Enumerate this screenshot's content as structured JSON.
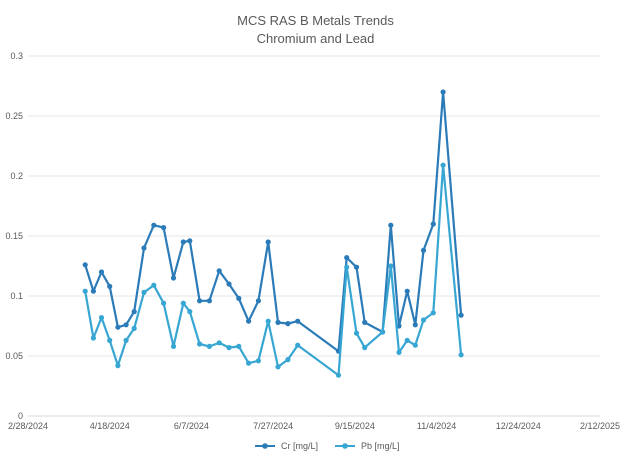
{
  "chart_data": {
    "type": "line",
    "title": "MCS RAS B Metals Trends",
    "subtitle": "Chromium and Lead",
    "xlabel": "",
    "ylabel": "",
    "ylim": [
      0,
      0.3
    ],
    "xlim": [
      "2024-02-28",
      "2025-02-12"
    ],
    "x_ticks": [
      "2/28/2024",
      "4/18/2024",
      "6/7/2024",
      "7/27/2024",
      "9/15/2024",
      "11/4/2024",
      "12/24/2024",
      "2/12/2025"
    ],
    "y_ticks": [
      "0",
      "0.05",
      "0.1",
      "0.15",
      "0.2",
      "0.25",
      "0.3"
    ],
    "grid": true,
    "legend_position": "bottom",
    "series": [
      {
        "name": "Cr [mg/L]",
        "color": "#2b7bb9",
        "points": [
          [
            "2024-04-03",
            0.126
          ],
          [
            "2024-04-08",
            0.104
          ],
          [
            "2024-04-13",
            0.12
          ],
          [
            "2024-04-18",
            0.108
          ],
          [
            "2024-04-23",
            0.074
          ],
          [
            "2024-04-28",
            0.076
          ],
          [
            "2024-05-03",
            0.087
          ],
          [
            "2024-05-09",
            0.14
          ],
          [
            "2024-05-15",
            0.159
          ],
          [
            "2024-05-21",
            0.157
          ],
          [
            "2024-05-27",
            0.115
          ],
          [
            "2024-06-02",
            0.145
          ],
          [
            "2024-06-06",
            0.146
          ],
          [
            "2024-06-12",
            0.096
          ],
          [
            "2024-06-18",
            0.096
          ],
          [
            "2024-06-24",
            0.121
          ],
          [
            "2024-06-30",
            0.11
          ],
          [
            "2024-07-06",
            0.098
          ],
          [
            "2024-07-12",
            0.079
          ],
          [
            "2024-07-18",
            0.096
          ],
          [
            "2024-07-24",
            0.145
          ],
          [
            "2024-07-30",
            0.078
          ],
          [
            "2024-08-05",
            0.077
          ],
          [
            "2024-08-11",
            0.079
          ],
          [
            "2024-09-05",
            0.054
          ],
          [
            "2024-09-10",
            0.132
          ],
          [
            "2024-09-16",
            0.124
          ],
          [
            "2024-09-21",
            0.078
          ],
          [
            "2024-10-02",
            0.07
          ],
          [
            "2024-10-07",
            0.159
          ],
          [
            "2024-10-12",
            0.075
          ],
          [
            "2024-10-17",
            0.104
          ],
          [
            "2024-10-22",
            0.076
          ],
          [
            "2024-10-27",
            0.138
          ],
          [
            "2024-11-02",
            0.16
          ],
          [
            "2024-11-08",
            0.27
          ],
          [
            "2024-11-19",
            0.084
          ]
        ]
      },
      {
        "name": "Pb [mg/L]",
        "color": "#37a6d2",
        "points": [
          [
            "2024-04-03",
            0.104
          ],
          [
            "2024-04-08",
            0.065
          ],
          [
            "2024-04-13",
            0.082
          ],
          [
            "2024-04-18",
            0.063
          ],
          [
            "2024-04-23",
            0.042
          ],
          [
            "2024-04-28",
            0.063
          ],
          [
            "2024-05-03",
            0.073
          ],
          [
            "2024-05-09",
            0.103
          ],
          [
            "2024-05-15",
            0.109
          ],
          [
            "2024-05-21",
            0.094
          ],
          [
            "2024-05-27",
            0.058
          ],
          [
            "2024-06-02",
            0.094
          ],
          [
            "2024-06-06",
            0.087
          ],
          [
            "2024-06-12",
            0.06
          ],
          [
            "2024-06-18",
            0.058
          ],
          [
            "2024-06-24",
            0.061
          ],
          [
            "2024-06-30",
            0.057
          ],
          [
            "2024-07-06",
            0.058
          ],
          [
            "2024-07-12",
            0.044
          ],
          [
            "2024-07-18",
            0.046
          ],
          [
            "2024-07-24",
            0.079
          ],
          [
            "2024-07-30",
            0.041
          ],
          [
            "2024-08-05",
            0.047
          ],
          [
            "2024-08-11",
            0.059
          ],
          [
            "2024-09-05",
            0.034
          ],
          [
            "2024-09-10",
            0.124
          ],
          [
            "2024-09-16",
            0.069
          ],
          [
            "2024-09-21",
            0.057
          ],
          [
            "2024-10-02",
            0.07
          ],
          [
            "2024-10-07",
            0.125
          ],
          [
            "2024-10-12",
            0.053
          ],
          [
            "2024-10-17",
            0.063
          ],
          [
            "2024-10-22",
            0.059
          ],
          [
            "2024-10-27",
            0.08
          ],
          [
            "2024-11-02",
            0.086
          ],
          [
            "2024-11-08",
            0.209
          ],
          [
            "2024-11-19",
            0.051
          ]
        ]
      }
    ]
  }
}
